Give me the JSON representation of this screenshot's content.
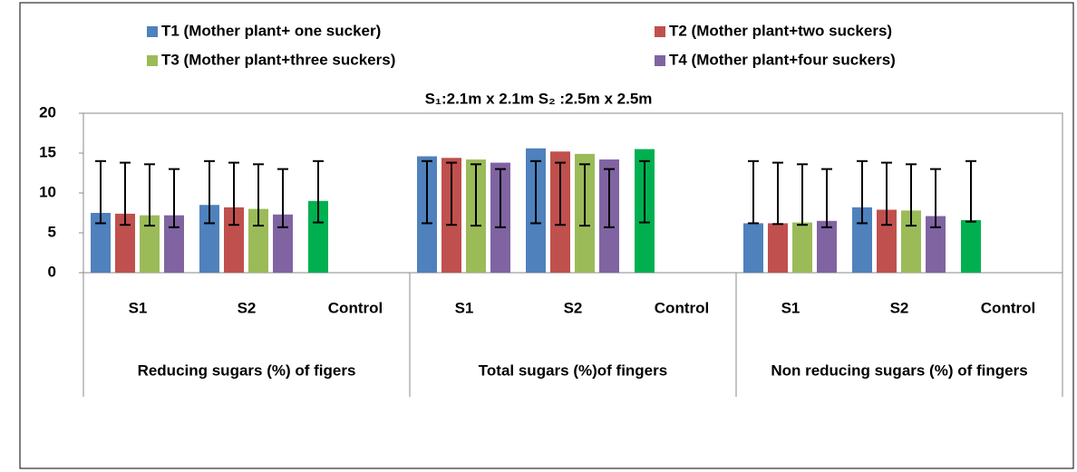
{
  "chart_data": {
    "type": "bar",
    "title": "S₁:2.1m x 2.1m S₂ :2.5m x 2.5m",
    "groups": [
      "Reducing sugars (%) of figers",
      "Total sugars (%)of fingers",
      "Non reducing sugars (%) of fingers"
    ],
    "categories": [
      "S1",
      "S2",
      "Control",
      "S1",
      "S2",
      "Control",
      "S1",
      "S2",
      "Control"
    ],
    "series": [
      {
        "name": "T1 (Mother plant+ one sucker)",
        "color": "#4f81bd",
        "values": [
          7.5,
          8.5,
          null,
          14.6,
          15.6,
          null,
          6.2,
          8.2,
          null
        ],
        "error_bars": [
          [
            6.2,
            14.0
          ],
          [
            6.2,
            14.0
          ],
          null,
          [
            6.2,
            14.0
          ],
          [
            6.2,
            14.0
          ],
          null,
          [
            6.2,
            14.0
          ],
          [
            6.2,
            14.0
          ],
          null
        ]
      },
      {
        "name": "T2 (Mother plant+two suckers)",
        "color": "#c0504d",
        "values": [
          7.4,
          8.2,
          null,
          14.4,
          15.2,
          null,
          6.2,
          7.9,
          null
        ],
        "error_bars": [
          [
            6.0,
            13.8
          ],
          [
            6.0,
            13.8
          ],
          null,
          [
            6.0,
            13.8
          ],
          [
            6.0,
            13.8
          ],
          null,
          [
            6.1,
            13.8
          ],
          [
            6.0,
            13.8
          ],
          null
        ]
      },
      {
        "name": "T3 (Mother plant+three suckers)",
        "color": "#9bbb59",
        "values": [
          7.2,
          8.0,
          null,
          14.2,
          14.9,
          null,
          6.3,
          7.8,
          null
        ],
        "error_bars": [
          [
            5.9,
            13.6
          ],
          [
            5.9,
            13.6
          ],
          null,
          [
            5.9,
            13.6
          ],
          [
            5.9,
            13.6
          ],
          null,
          [
            6.0,
            13.6
          ],
          [
            5.9,
            13.6
          ],
          null
        ]
      },
      {
        "name": "T4 (Mother plant+four suckers)",
        "color": "#8064a2",
        "values": [
          7.2,
          7.3,
          null,
          13.8,
          14.2,
          null,
          6.5,
          7.1,
          null
        ],
        "error_bars": [
          [
            5.7,
            13.0
          ],
          [
            5.7,
            13.0
          ],
          null,
          [
            5.7,
            13.0
          ],
          [
            5.7,
            13.0
          ],
          null,
          [
            5.7,
            13.0
          ],
          [
            5.7,
            13.0
          ],
          null
        ]
      },
      {
        "color": "#00b050",
        "values": [
          null,
          null,
          9.0,
          null,
          null,
          15.5,
          null,
          null,
          6.6
        ],
        "error_bars": [
          null,
          null,
          [
            6.3,
            14.0
          ],
          null,
          null,
          [
            6.3,
            14.0
          ],
          null,
          null,
          [
            6.4,
            14.0
          ]
        ]
      }
    ],
    "ylim": [
      0,
      20
    ],
    "yticks": [
      0,
      5,
      10,
      15,
      20
    ],
    "grid": false
  }
}
